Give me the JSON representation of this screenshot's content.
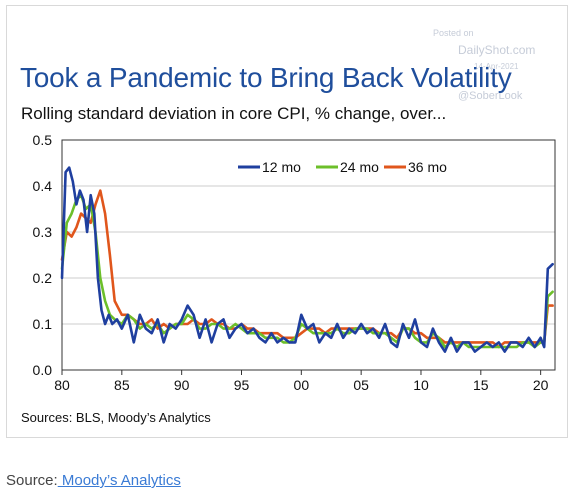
{
  "watermark": {
    "posted_on": "Posted on",
    "site": "DailyShot.com",
    "date": "14-Apr-2021",
    "handle": "@SoberLook"
  },
  "footer": {
    "source_prefix": "Source:",
    "source_link": " Moody’s Analytics"
  },
  "colors": {
    "title": "#1f4e9c",
    "series_12mo": "#1f3f9f",
    "series_24mo": "#6cbf2a",
    "series_36mo": "#e0561c",
    "grid": "#cccccc",
    "axis": "#333333"
  },
  "chart_data": {
    "type": "line",
    "title": "Took a Pandemic to Bring Back Volatility",
    "subtitle": "Rolling standard deviation in core CPI, % change, over...",
    "source_note": "Sources: BLS, Moody’s Analytics",
    "xlabel": "",
    "ylabel": "",
    "xlim": [
      1980,
      2021.2
    ],
    "ylim": [
      0,
      0.5
    ],
    "x_ticks": [
      1980,
      1985,
      1990,
      1995,
      2000,
      2005,
      2010,
      2015,
      2020
    ],
    "x_tick_labels": [
      "80",
      "85",
      "90",
      "95",
      "00",
      "05",
      "10",
      "15",
      "20"
    ],
    "y_ticks": [
      0,
      0.1,
      0.2,
      0.3,
      0.4,
      0.5
    ],
    "y_tick_labels": [
      "0.0",
      "0.1",
      "0.2",
      "0.3",
      "0.4",
      "0.5"
    ],
    "grid": "horizontal",
    "legend_position": "top-right",
    "series": [
      {
        "name": "12 mo",
        "color": "#1f3f9f",
        "x": [
          1980.0,
          1980.3,
          1980.6,
          1980.9,
          1981.2,
          1981.5,
          1981.8,
          1982.1,
          1982.4,
          1982.7,
          1983.0,
          1983.3,
          1983.6,
          1983.9,
          1984.2,
          1984.6,
          1985.0,
          1985.5,
          1986.0,
          1986.5,
          1987.0,
          1987.5,
          1988.0,
          1988.5,
          1989.0,
          1989.5,
          1990.0,
          1990.5,
          1991.0,
          1991.5,
          1992.0,
          1992.5,
          1993.0,
          1993.5,
          1994.0,
          1994.5,
          1995.0,
          1995.5,
          1996.0,
          1996.5,
          1997.0,
          1997.5,
          1998.0,
          1998.5,
          1999.0,
          1999.5,
          2000.0,
          2000.5,
          2001.0,
          2001.5,
          2002.0,
          2002.5,
          2003.0,
          2003.5,
          2004.0,
          2004.5,
          2005.0,
          2005.5,
          2006.0,
          2006.5,
          2007.0,
          2007.5,
          2008.0,
          2008.5,
          2009.0,
          2009.5,
          2010.0,
          2010.5,
          2011.0,
          2011.5,
          2012.0,
          2012.5,
          2013.0,
          2013.5,
          2014.0,
          2014.5,
          2015.0,
          2015.5,
          2016.0,
          2016.5,
          2017.0,
          2017.5,
          2018.0,
          2018.5,
          2019.0,
          2019.5,
          2020.0,
          2020.3,
          2020.6,
          2021.0
        ],
        "values": [
          0.2,
          0.43,
          0.44,
          0.41,
          0.36,
          0.39,
          0.37,
          0.3,
          0.38,
          0.34,
          0.2,
          0.13,
          0.1,
          0.12,
          0.1,
          0.11,
          0.09,
          0.12,
          0.06,
          0.12,
          0.09,
          0.08,
          0.11,
          0.06,
          0.1,
          0.09,
          0.11,
          0.14,
          0.12,
          0.07,
          0.11,
          0.06,
          0.1,
          0.11,
          0.07,
          0.09,
          0.1,
          0.08,
          0.09,
          0.07,
          0.06,
          0.08,
          0.06,
          0.07,
          0.06,
          0.06,
          0.12,
          0.09,
          0.1,
          0.06,
          0.08,
          0.07,
          0.1,
          0.07,
          0.09,
          0.08,
          0.1,
          0.08,
          0.09,
          0.07,
          0.1,
          0.06,
          0.05,
          0.1,
          0.07,
          0.11,
          0.06,
          0.05,
          0.09,
          0.06,
          0.04,
          0.07,
          0.04,
          0.06,
          0.06,
          0.04,
          0.05,
          0.06,
          0.05,
          0.06,
          0.04,
          0.06,
          0.06,
          0.05,
          0.07,
          0.05,
          0.07,
          0.05,
          0.22,
          0.23
        ]
      },
      {
        "name": "24 mo",
        "color": "#6cbf2a",
        "x": [
          1980.0,
          1980.4,
          1980.8,
          1981.2,
          1981.6,
          1982.0,
          1982.4,
          1982.8,
          1983.2,
          1983.6,
          1984.0,
          1984.4,
          1985.0,
          1985.5,
          1986.0,
          1986.5,
          1987.0,
          1987.5,
          1988.0,
          1988.5,
          1989.0,
          1989.5,
          1990.0,
          1990.5,
          1991.0,
          1991.5,
          1992.0,
          1992.5,
          1993.0,
          1993.5,
          1994.0,
          1994.5,
          1995.0,
          1995.5,
          1996.0,
          1996.5,
          1997.0,
          1997.5,
          1998.0,
          1998.5,
          1999.0,
          1999.5,
          2000.0,
          2000.5,
          2001.0,
          2001.5,
          2002.0,
          2002.5,
          2003.0,
          2003.5,
          2004.0,
          2004.5,
          2005.0,
          2005.5,
          2006.0,
          2006.5,
          2007.0,
          2007.5,
          2008.0,
          2008.5,
          2009.0,
          2009.5,
          2010.0,
          2010.5,
          2011.0,
          2011.5,
          2012.0,
          2012.5,
          2013.0,
          2013.5,
          2014.0,
          2014.5,
          2015.0,
          2015.5,
          2016.0,
          2016.5,
          2017.0,
          2017.5,
          2018.0,
          2018.5,
          2019.0,
          2019.5,
          2020.0,
          2020.3,
          2020.6,
          2021.0
        ],
        "values": [
          0.22,
          0.32,
          0.34,
          0.37,
          0.38,
          0.35,
          0.36,
          0.3,
          0.2,
          0.15,
          0.12,
          0.11,
          0.1,
          0.12,
          0.11,
          0.09,
          0.1,
          0.09,
          0.1,
          0.08,
          0.09,
          0.1,
          0.1,
          0.12,
          0.11,
          0.09,
          0.09,
          0.1,
          0.1,
          0.09,
          0.09,
          0.1,
          0.09,
          0.08,
          0.08,
          0.08,
          0.07,
          0.07,
          0.07,
          0.06,
          0.06,
          0.07,
          0.1,
          0.09,
          0.08,
          0.08,
          0.08,
          0.08,
          0.09,
          0.08,
          0.08,
          0.09,
          0.09,
          0.09,
          0.08,
          0.08,
          0.08,
          0.07,
          0.06,
          0.09,
          0.09,
          0.07,
          0.06,
          0.06,
          0.08,
          0.07,
          0.05,
          0.06,
          0.05,
          0.06,
          0.05,
          0.05,
          0.05,
          0.05,
          0.05,
          0.05,
          0.05,
          0.05,
          0.05,
          0.06,
          0.06,
          0.05,
          0.06,
          0.06,
          0.16,
          0.17
        ]
      },
      {
        "name": "36 mo",
        "color": "#e0561c",
        "x": [
          1980.0,
          1980.4,
          1980.8,
          1981.2,
          1981.6,
          1982.0,
          1982.4,
          1982.8,
          1983.2,
          1983.6,
          1984.0,
          1984.4,
          1985.0,
          1985.5,
          1986.0,
          1986.5,
          1987.0,
          1987.5,
          1988.0,
          1988.5,
          1989.0,
          1989.5,
          1990.0,
          1990.5,
          1991.0,
          1991.5,
          1992.0,
          1992.5,
          1993.0,
          1993.5,
          1994.0,
          1994.5,
          1995.0,
          1995.5,
          1996.0,
          1996.5,
          1997.0,
          1997.5,
          1998.0,
          1998.5,
          1999.0,
          1999.5,
          2000.0,
          2000.5,
          2001.0,
          2001.5,
          2002.0,
          2002.5,
          2003.0,
          2003.5,
          2004.0,
          2004.5,
          2005.0,
          2005.5,
          2006.0,
          2006.5,
          2007.0,
          2007.5,
          2008.0,
          2008.5,
          2009.0,
          2009.5,
          2010.0,
          2010.5,
          2011.0,
          2011.5,
          2012.0,
          2012.5,
          2013.0,
          2013.5,
          2014.0,
          2014.5,
          2015.0,
          2015.5,
          2016.0,
          2016.5,
          2017.0,
          2017.5,
          2018.0,
          2018.5,
          2019.0,
          2019.5,
          2020.0,
          2020.3,
          2020.6,
          2021.0
        ],
        "values": [
          0.24,
          0.3,
          0.29,
          0.31,
          0.34,
          0.33,
          0.32,
          0.36,
          0.39,
          0.34,
          0.25,
          0.15,
          0.12,
          0.12,
          0.11,
          0.1,
          0.1,
          0.11,
          0.09,
          0.1,
          0.09,
          0.1,
          0.1,
          0.1,
          0.11,
          0.1,
          0.1,
          0.11,
          0.1,
          0.1,
          0.09,
          0.09,
          0.1,
          0.09,
          0.09,
          0.08,
          0.08,
          0.08,
          0.08,
          0.07,
          0.07,
          0.07,
          0.08,
          0.09,
          0.09,
          0.09,
          0.08,
          0.09,
          0.09,
          0.09,
          0.09,
          0.09,
          0.09,
          0.09,
          0.09,
          0.08,
          0.08,
          0.08,
          0.07,
          0.09,
          0.09,
          0.08,
          0.08,
          0.07,
          0.07,
          0.07,
          0.06,
          0.06,
          0.06,
          0.06,
          0.06,
          0.06,
          0.06,
          0.06,
          0.06,
          0.05,
          0.06,
          0.06,
          0.06,
          0.06,
          0.06,
          0.06,
          0.06,
          0.06,
          0.14,
          0.14
        ]
      }
    ]
  }
}
